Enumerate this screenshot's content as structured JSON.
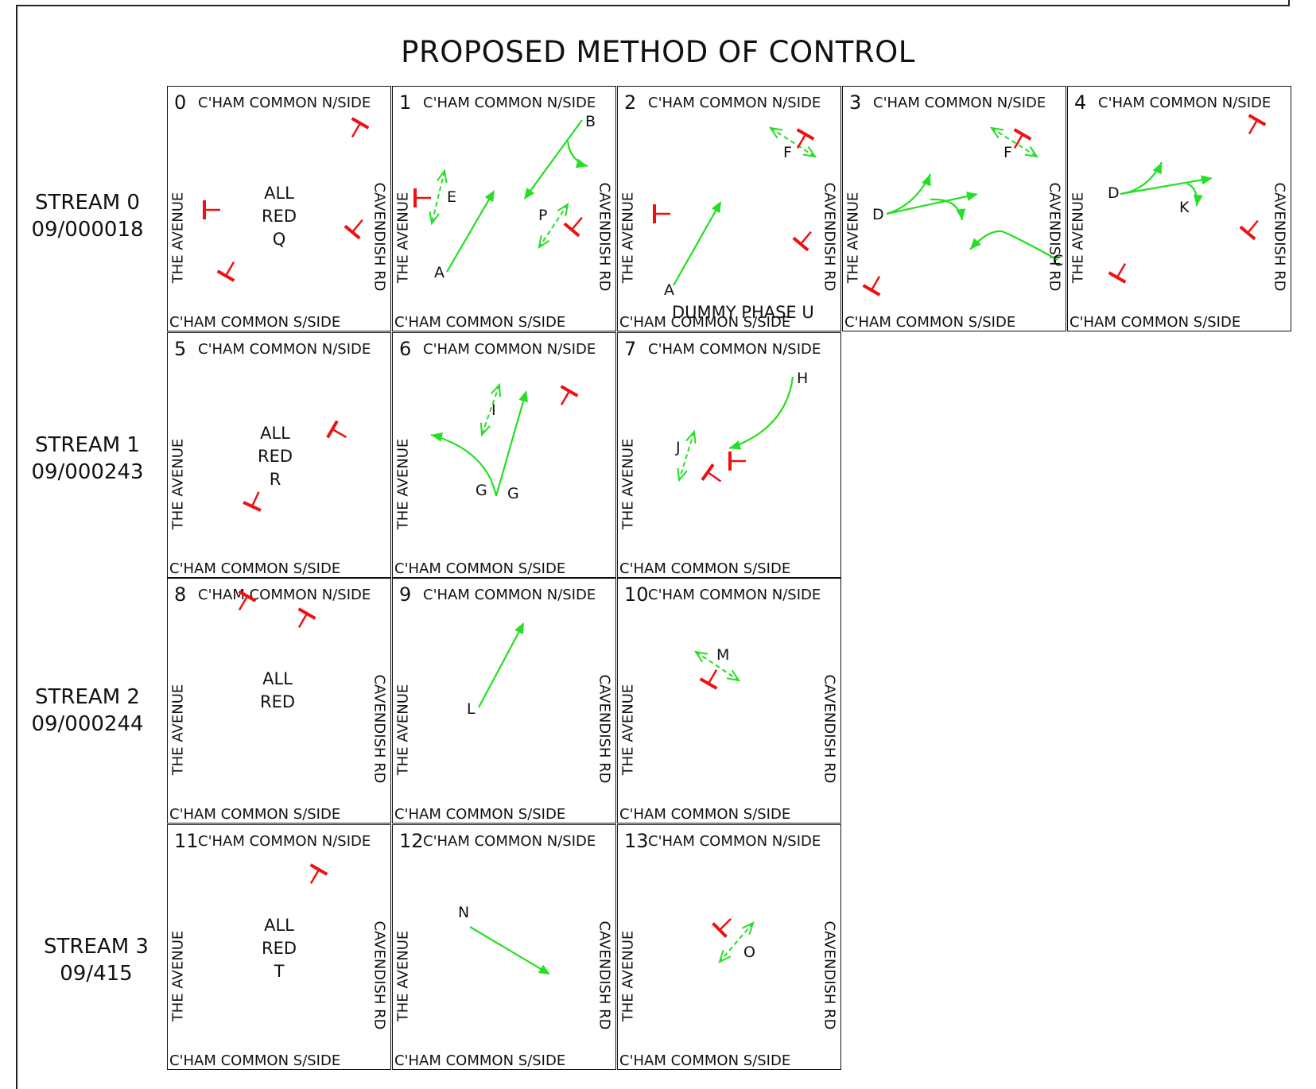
{
  "title": "PROPOSED METHOD OF CONTROL",
  "colors": {
    "go": "#22e022",
    "stop": "#ee1111",
    "ink": "#111111"
  },
  "roads": {
    "north": "C'HAM COMMON N/SIDE",
    "south": "C'HAM COMMON S/SIDE",
    "west": "THE AVENUE",
    "east": "CAVENDISH RD"
  },
  "streams": [
    {
      "name": "STREAM 0",
      "code": "09/000018"
    },
    {
      "name": "STREAM 1",
      "code": "09/000243"
    },
    {
      "name": "STREAM 2",
      "code": "09/000244"
    },
    {
      "name": "STREAM 3",
      "code": "09/415"
    }
  ],
  "stages": [
    {
      "number": "0",
      "center": [
        "ALL",
        "RED",
        "Q"
      ],
      "labels": []
    },
    {
      "number": "1",
      "labels": [
        "A",
        "B",
        "E",
        "P"
      ]
    },
    {
      "number": "2",
      "labels": [
        "A",
        "F"
      ],
      "dummy": "DUMMY PHASE U"
    },
    {
      "number": "3",
      "labels": [
        "D",
        "F",
        "C"
      ]
    },
    {
      "number": "4",
      "labels": [
        "D",
        "K"
      ]
    },
    {
      "number": "5",
      "center": [
        "ALL",
        "RED",
        "R"
      ],
      "labels": []
    },
    {
      "number": "6",
      "labels": [
        "G",
        "G",
        "I"
      ]
    },
    {
      "number": "7",
      "labels": [
        "H",
        "J"
      ]
    },
    {
      "number": "8",
      "center": [
        "ALL",
        "RED"
      ],
      "labels": []
    },
    {
      "number": "9",
      "labels": [
        "L"
      ]
    },
    {
      "number": "10",
      "labels": [
        "M"
      ]
    },
    {
      "number": "11",
      "center": [
        "ALL",
        "RED",
        "T"
      ],
      "labels": []
    },
    {
      "number": "12",
      "labels": [
        "N"
      ]
    },
    {
      "number": "13",
      "labels": [
        "O"
      ]
    }
  ]
}
